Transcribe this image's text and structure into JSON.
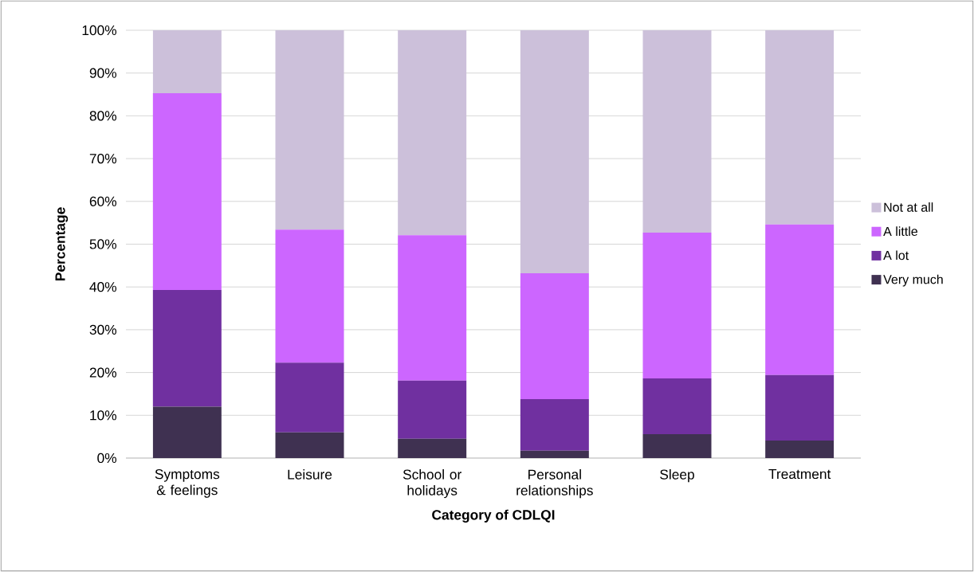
{
  "chart_data": {
    "type": "bar",
    "stacked": true,
    "xlabel": "Category of CDLQI",
    "ylabel": "Percentage",
    "categories": [
      "Symptoms & feelings",
      "Leisure",
      "School or holidays",
      "Personal relationships",
      "Sleep",
      "Treatment"
    ],
    "series": [
      {
        "name": "Very much",
        "color": "#3f3151",
        "values": [
          12,
          6,
          4.5,
          1.7,
          5.6,
          4.1
        ]
      },
      {
        "name": "A lot",
        "color": "#7030a0",
        "values": [
          27.3,
          16.3,
          13.6,
          12.1,
          13,
          15.3
        ]
      },
      {
        "name": "A little",
        "color": "#cc66ff",
        "values": [
          46,
          31.1,
          34,
          29.4,
          34.1,
          35.2
        ]
      },
      {
        "name": "Not at all",
        "color": "#ccc0da",
        "values": [
          14.7,
          46.6,
          47.9,
          56.8,
          47.3,
          45.4
        ]
      }
    ],
    "ylim": [
      0,
      100
    ],
    "yticks": [
      {
        "value": 0,
        "label": "0%"
      },
      {
        "value": 10,
        "label": "10%"
      },
      {
        "value": 20,
        "label": "20%"
      },
      {
        "value": 30,
        "label": "30%"
      },
      {
        "value": 40,
        "label": "40%"
      },
      {
        "value": 50,
        "label": "50%"
      },
      {
        "value": 60,
        "label": "60%"
      },
      {
        "value": 70,
        "label": "70%"
      },
      {
        "value": 80,
        "label": "80%"
      },
      {
        "value": 90,
        "label": "90%"
      },
      {
        "value": 100,
        "label": "100%"
      }
    ],
    "grid": "y",
    "legend": "right"
  }
}
